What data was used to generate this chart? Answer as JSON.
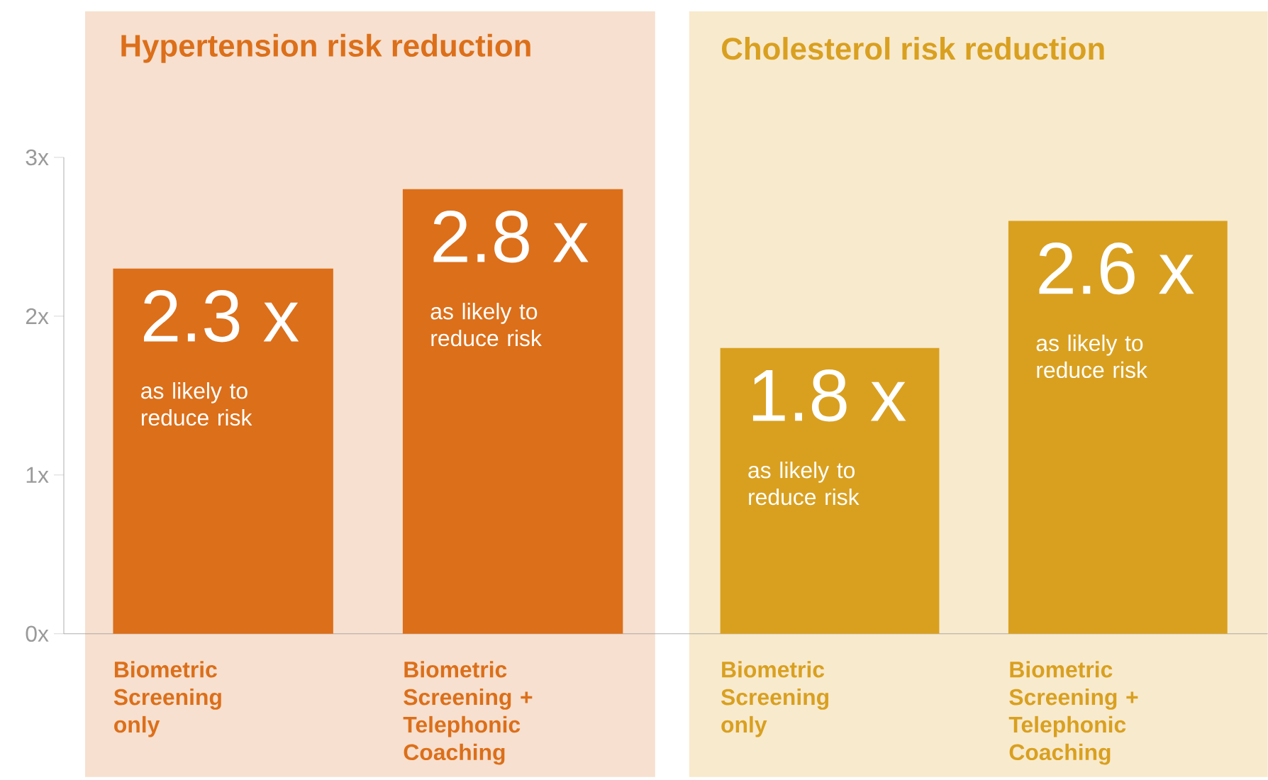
{
  "chart_data": [
    {
      "type": "bar",
      "title": "Hypertension risk reduction",
      "categories": [
        "Biometric Screening only",
        "Biometric Screening + Telephonic Coaching"
      ],
      "values": [
        2.3,
        2.8
      ],
      "color": "#dc6f1a",
      "value_labels": [
        "2.3 x",
        "2.8 x"
      ],
      "annotations": [
        "as likely to reduce risk",
        "as likely to reduce risk"
      ],
      "ylim": [
        0,
        3
      ],
      "yticks": [
        {
          "value": 0,
          "label": "0x"
        },
        {
          "value": 1,
          "label": "1x"
        },
        {
          "value": 2,
          "label": "2x"
        },
        {
          "value": 3,
          "label": "3x"
        }
      ]
    },
    {
      "type": "bar",
      "title": "Cholesterol risk reduction",
      "categories": [
        "Biometric Screening only",
        "Biometric Screening + Telephonic Coaching"
      ],
      "values": [
        1.8,
        2.6
      ],
      "color": "#d9a020",
      "value_labels": [
        "1.8 x",
        "2.6 x"
      ],
      "annotations": [
        "as likely to reduce risk",
        "as likely to reduce risk"
      ],
      "ylim": [
        0,
        3
      ],
      "tick_labels": "x"
    }
  ]
}
